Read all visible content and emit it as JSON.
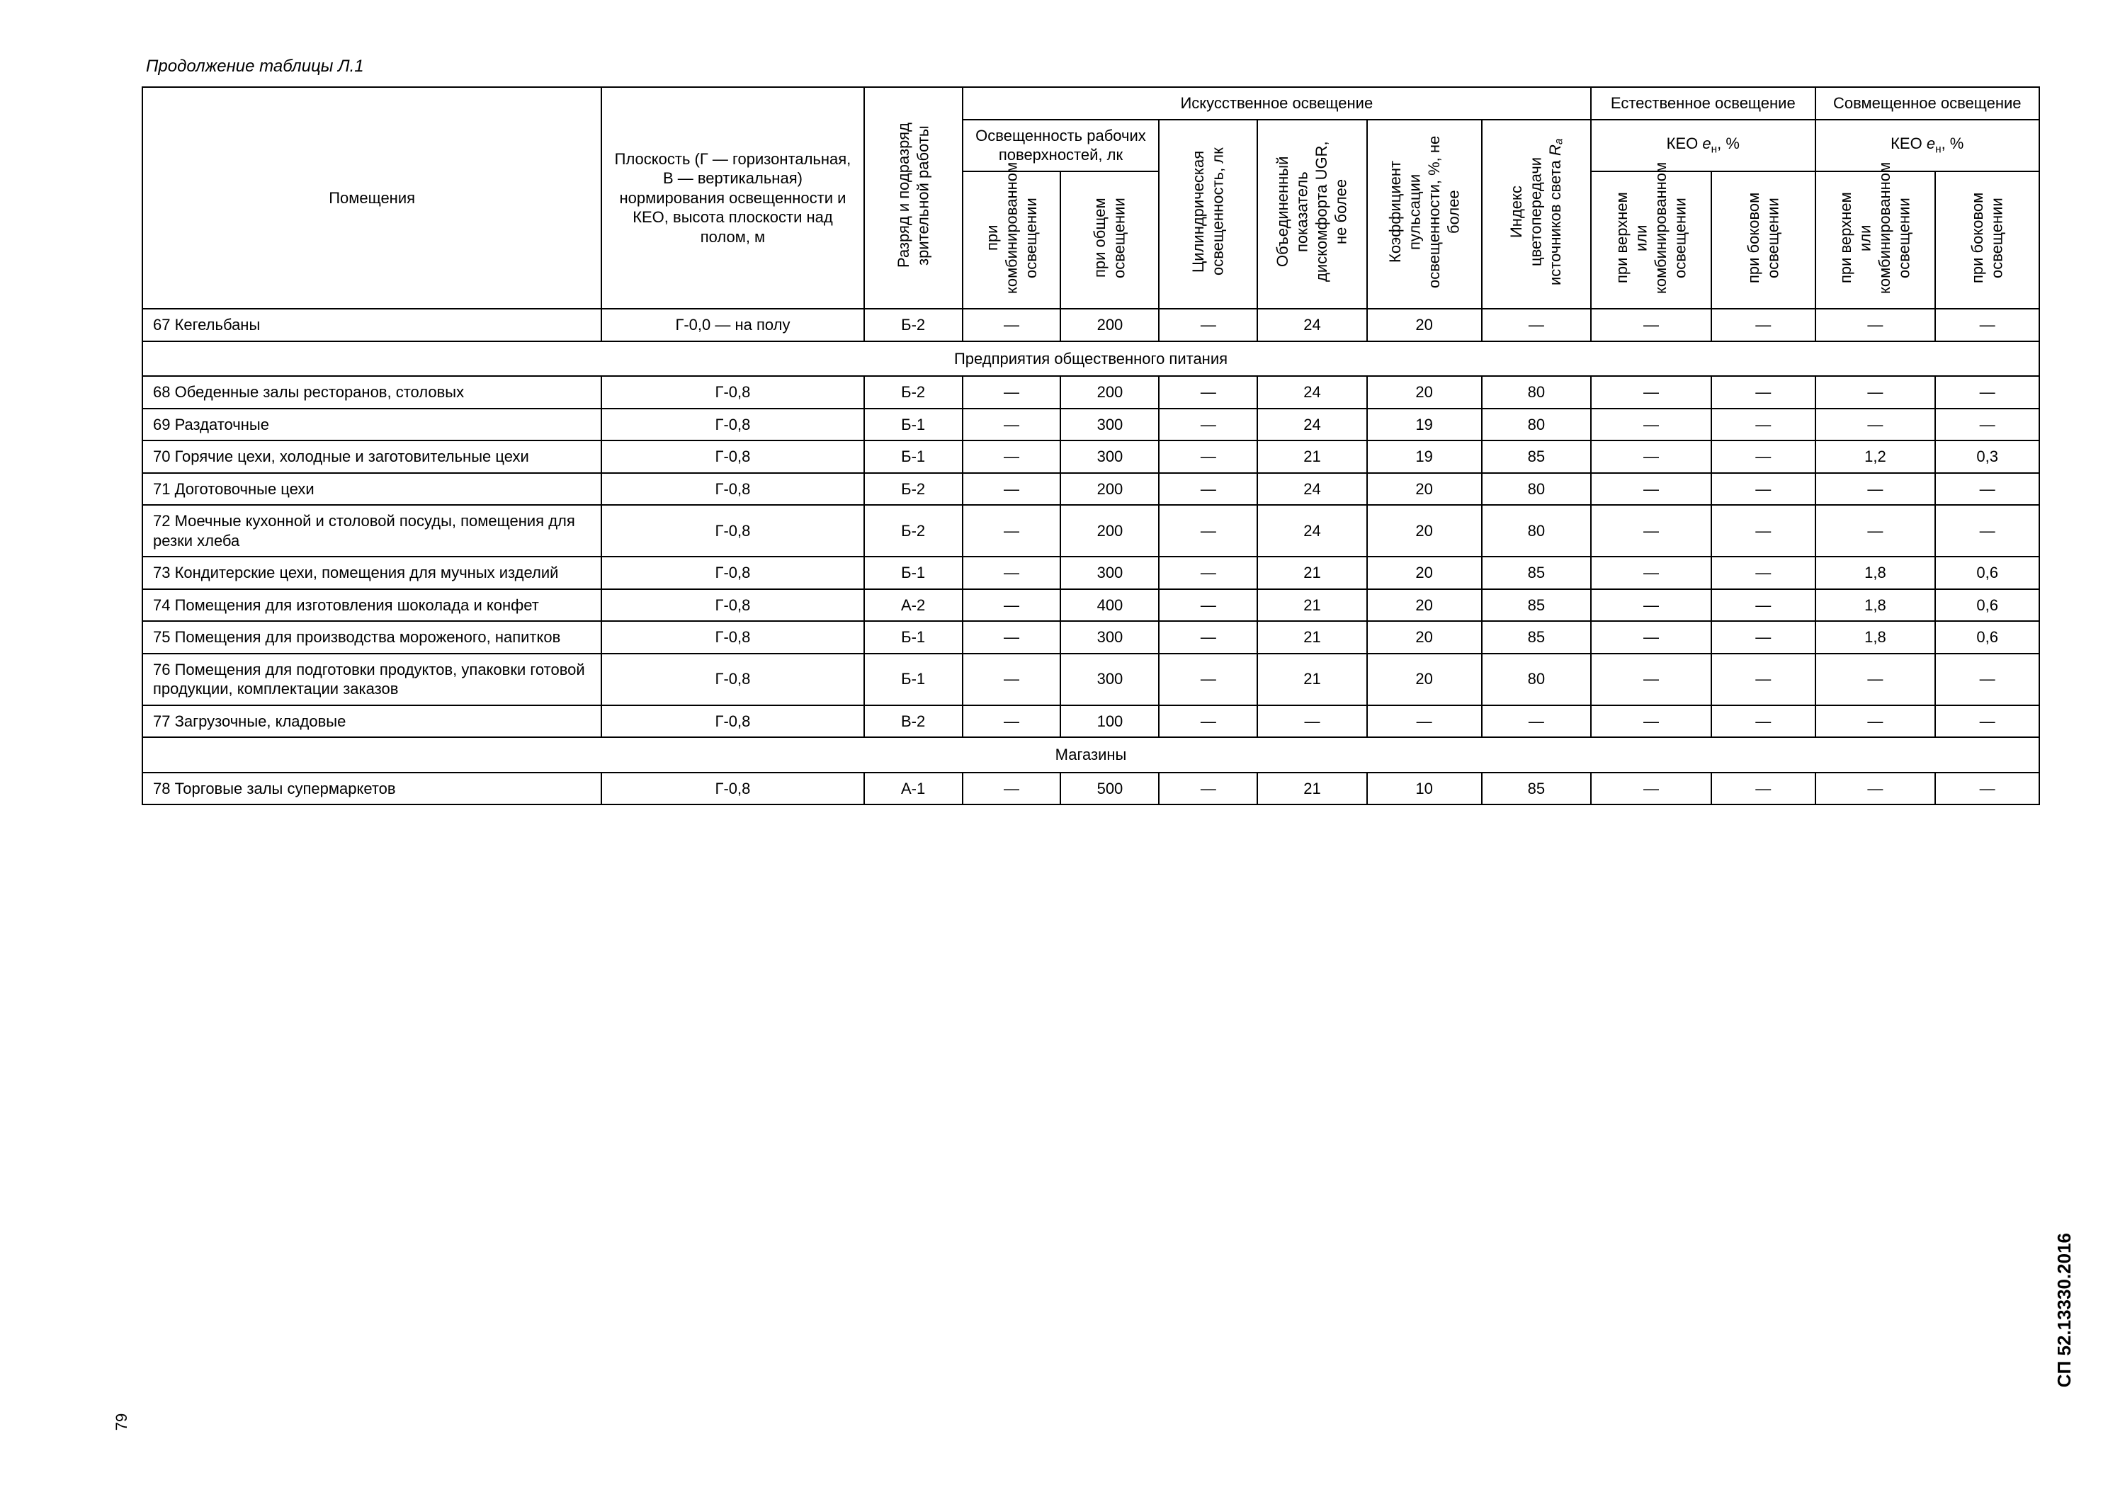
{
  "caption": "Продолжение таблицы Л.1",
  "page_number": "79",
  "doc_code": "СП 52.13330.2016",
  "columns": {
    "room": "Помещения",
    "plane": "Плоскость (Г — горизонтальная, В — вертикальная) нормирования освещенности и КЕО, высота плоскости над полом, м",
    "grade": "Разряд и подразряд зрительной работы",
    "artificial": "Искусственное освещение",
    "natural": "Естественное освещение",
    "combined": "Совмещенное освещение",
    "illum_group": "Освещенность рабочих поверхностей, лк",
    "keo_nat": "КЕО eн, %",
    "keo_comb": "КЕО eн, %",
    "combi": "при комбинированном освещении",
    "general": "при общем освещении",
    "cylindrical": "Цилиндрическая освещенность, лк",
    "ugr": "Объединенный показатель дискомфорта UGR, не более",
    "pulsation": "Коэффициент пульсации освещенности, %, не более",
    "ra": "Индекс цветопередачи источников света Ra",
    "top_combi": "при верхнем или комбинированном освещении",
    "side": "при боковом освещении"
  },
  "col_widths": {
    "room": "420",
    "plane": "240",
    "grade": "90",
    "combi": "90",
    "general": "90",
    "cyl": "90",
    "ugr": "100",
    "puls": "105",
    "ra": "100",
    "nat_top": "110",
    "nat_side": "95",
    "comb_top": "110",
    "comb_side": "95"
  },
  "sections": [
    {
      "title": null,
      "rows": [
        {
          "room": "67 Кегельбаны",
          "plane": "Г-0,0 — на полу",
          "grade": "Б-2",
          "c": [
            "—",
            "200",
            "—",
            "24",
            "20",
            "—",
            "—",
            "—",
            "—",
            "—"
          ]
        }
      ]
    },
    {
      "title": "Предприятия общественного питания",
      "rows": [
        {
          "room": "68 Обеденные залы ресторанов, столовых",
          "plane": "Г-0,8",
          "grade": "Б-2",
          "c": [
            "—",
            "200",
            "—",
            "24",
            "20",
            "80",
            "—",
            "—",
            "—",
            "—"
          ]
        },
        {
          "room": "69 Раздаточные",
          "plane": "Г-0,8",
          "grade": "Б-1",
          "c": [
            "—",
            "300",
            "—",
            "24",
            "19",
            "80",
            "—",
            "—",
            "—",
            "—"
          ]
        },
        {
          "room": "70 Горячие цехи, холодные и заготовительные цехи",
          "plane": "Г-0,8",
          "grade": "Б-1",
          "c": [
            "—",
            "300",
            "—",
            "21",
            "19",
            "85",
            "—",
            "—",
            "1,2",
            "0,3"
          ]
        },
        {
          "room": "71 Доготовочные цехи",
          "plane": "Г-0,8",
          "grade": "Б-2",
          "c": [
            "—",
            "200",
            "—",
            "24",
            "20",
            "80",
            "—",
            "—",
            "—",
            "—"
          ]
        },
        {
          "room": "72 Моечные кухонной и столовой посуды, помещения для резки хлеба",
          "plane": "Г-0,8",
          "grade": "Б-2",
          "c": [
            "—",
            "200",
            "—",
            "24",
            "20",
            "80",
            "—",
            "—",
            "—",
            "—"
          ]
        },
        {
          "room": "73 Кондитерские цехи, помещения для мучных изделий",
          "plane": "Г-0,8",
          "grade": "Б-1",
          "c": [
            "—",
            "300",
            "—",
            "21",
            "20",
            "85",
            "—",
            "—",
            "1,8",
            "0,6"
          ]
        },
        {
          "room": "74 Помещения для изготовления шоколада и конфет",
          "plane": "Г-0,8",
          "grade": "А-2",
          "c": [
            "—",
            "400",
            "—",
            "21",
            "20",
            "85",
            "—",
            "—",
            "1,8",
            "0,6"
          ]
        },
        {
          "room": "75 Помещения для производства мороженого, напитков",
          "plane": "Г-0,8",
          "grade": "Б-1",
          "c": [
            "—",
            "300",
            "—",
            "21",
            "20",
            "85",
            "—",
            "—",
            "1,8",
            "0,6"
          ]
        },
        {
          "room": "76 Помещения для подготовки продуктов, упаковки готовой продукции, комплектации заказов",
          "plane": "Г-0,8",
          "grade": "Б-1",
          "c": [
            "—",
            "300",
            "—",
            "21",
            "20",
            "80",
            "—",
            "—",
            "—",
            "—"
          ]
        },
        {
          "room": "77 Загрузочные, кладовые",
          "plane": "Г-0,8",
          "grade": "В-2",
          "c": [
            "—",
            "100",
            "—",
            "—",
            "—",
            "—",
            "—",
            "—",
            "—",
            "—"
          ]
        }
      ]
    },
    {
      "title": "Магазины",
      "rows": [
        {
          "room": "78 Торговые залы супермаркетов",
          "plane": "Г-0,8",
          "grade": "А-1",
          "c": [
            "—",
            "500",
            "—",
            "21",
            "10",
            "85",
            "—",
            "—",
            "—",
            "—"
          ]
        }
      ]
    }
  ]
}
